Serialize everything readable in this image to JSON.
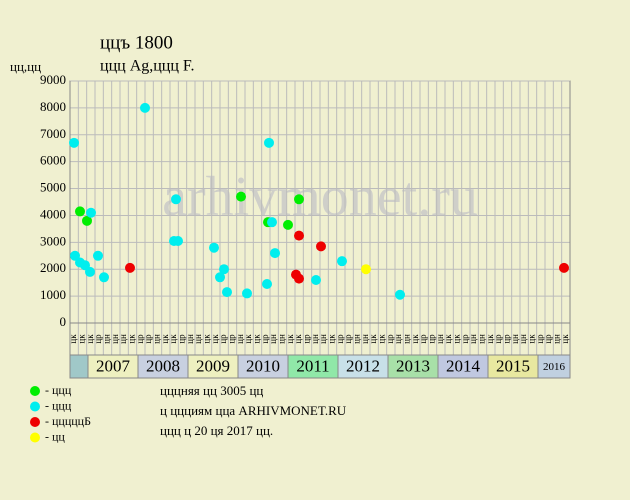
{
  "chart_data": {
    "type": "scatter",
    "title": "ццъ 1800",
    "subtitle": "ццц Ag,ццц F.",
    "y_label": "цц,цц",
    "watermark": "arhivmonet.ru",
    "xlim": [
      2006.64,
      2016.64
    ],
    "ylim": [
      0,
      9000
    ],
    "yticks": [
      0,
      1000,
      2000,
      3000,
      4000,
      5000,
      6000,
      7000,
      8000,
      9000
    ],
    "xticks": [
      2007,
      2008,
      2009,
      2010,
      2011,
      2012,
      2013,
      2014,
      2015,
      2016
    ],
    "year_colors": [
      "#eef0c0",
      "#c8d0e0",
      "#eef0c0",
      "#c8d0e0",
      "#90e8a8",
      "#c8e0e8",
      "#a8e0a8",
      "#c0c8e0",
      "#e8e8a0",
      "#c0d0e0"
    ],
    "x_sublabels": [
      "цк",
      "цк",
      "цк",
      "цр",
      "цн",
      "цн",
      "цн",
      "цк",
      "цр",
      "цр",
      "цн",
      "цк",
      "цк",
      "цр",
      "цн",
      "цн",
      "цк",
      "цк",
      "цр",
      "цр",
      "цн",
      "цк",
      "цк",
      "цр",
      "цн",
      "цн",
      "цк",
      "цк",
      "цр",
      "цн",
      "цн",
      "цк",
      "цр",
      "цр",
      "цн",
      "цн",
      "цк",
      "цк",
      "цр",
      "цн",
      "цн",
      "цк",
      "цр",
      "цр",
      "цн",
      "цк",
      "цк",
      "цр",
      "цн",
      "цн",
      "цк",
      "цр",
      "цр",
      "цн",
      "цн",
      "цк",
      "цр",
      "цр",
      "цн",
      "цк"
    ],
    "grid": true,
    "series": [
      {
        "name": "- ццц",
        "color": "#00ee00",
        "x": [
          2006.84,
          2006.98,
          2010.06,
          2010.6,
          2011.0,
          2011.22
        ],
        "values": [
          4150,
          3800,
          4700,
          3750,
          3650,
          4600
        ]
      },
      {
        "name": "- ццц",
        "color": "#00eeee",
        "x": [
          2006.72,
          2006.74,
          2006.84,
          2006.94,
          2007.06,
          2007.04,
          2007.2,
          2007.32,
          2008.14,
          2008.72,
          2008.8,
          2008.76,
          2009.52,
          2009.64,
          2009.72,
          2009.78,
          2010.18,
          2010.58,
          2010.62,
          2010.68,
          2010.74,
          2011.56,
          2012.08,
          2013.24
        ],
        "values": [
          6700,
          2500,
          2250,
          2150,
          4100,
          1900,
          2500,
          1700,
          8000,
          3050,
          3050,
          4600,
          2800,
          1700,
          2000,
          1150,
          1100,
          1450,
          6700,
          3750,
          2600,
          1600,
          2300,
          1050
        ]
      },
      {
        "name": "- цццццБ",
        "color": "#ee0000",
        "x": [
          2007.84,
          2011.16,
          2011.22,
          2011.22,
          2011.66,
          2016.52
        ],
        "values": [
          2050,
          1800,
          1650,
          3250,
          2850,
          2050
        ]
      },
      {
        "name": "- цц",
        "color": "#ffff00",
        "x": [
          2012.56
        ],
        "values": [
          2000
        ]
      }
    ],
    "notes": [
      "цццняя цц 3005 цц",
      "ц ццциям цца ARHIVMONET.RU",
      "ццц ц 20 ця 2017 цц."
    ]
  }
}
